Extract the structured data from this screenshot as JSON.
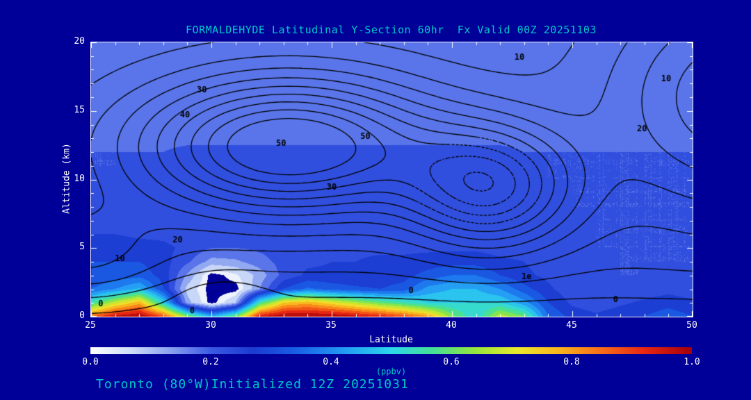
{
  "title": "FORMALDEHYDE Latitudinal Y-Section 60hr  Fx Valid 00Z 20251103",
  "footer": "Toronto (80°W)Initialized 12Z 20251031",
  "colors": {
    "background": "#000099",
    "heading_text": "#00C8C8",
    "axis_text": "#FFFFFF",
    "contour_line": "#000000",
    "plot_border": "#FFFFFF"
  },
  "axes": {
    "x": {
      "label": "Latitude",
      "min": 25,
      "max": 50,
      "major_ticks": [
        25,
        30,
        35,
        40,
        45,
        50
      ],
      "minor_step": 1
    },
    "y": {
      "label": "Altitude (km)",
      "min": 0,
      "max": 20,
      "major_ticks": [
        0,
        5,
        10,
        15,
        20
      ],
      "minor_step": 1
    }
  },
  "colorbar": {
    "label": "(ppbv)",
    "min": 0.0,
    "max": 1.0,
    "tick_labels": [
      "0.0",
      "0.2",
      "0.4",
      "0.6",
      "0.8",
      "1.0"
    ],
    "stops": [
      [
        0.0,
        255,
        255,
        255
      ],
      [
        0.07,
        205,
        220,
        248
      ],
      [
        0.14,
        130,
        155,
        240
      ],
      [
        0.2,
        60,
        90,
        228
      ],
      [
        0.27,
        28,
        60,
        210
      ],
      [
        0.34,
        25,
        95,
        230
      ],
      [
        0.42,
        35,
        155,
        245
      ],
      [
        0.5,
        45,
        215,
        235
      ],
      [
        0.57,
        70,
        225,
        150
      ],
      [
        0.64,
        150,
        230,
        60
      ],
      [
        0.71,
        235,
        235,
        45
      ],
      [
        0.78,
        250,
        180,
        30
      ],
      [
        0.85,
        248,
        110,
        25
      ],
      [
        0.92,
        235,
        40,
        20
      ],
      [
        1.0,
        165,
        0,
        10
      ]
    ]
  },
  "chart_data": {
    "type": "heatmap",
    "title": "FORMALDEHYDE Latitudinal Y-Section 60hr Fx Valid 00Z 20251103",
    "xlabel": "Latitude",
    "ylabel": "Altitude (km)",
    "unit": "ppbv",
    "xlim": [
      25,
      50
    ],
    "ylim": [
      0,
      20
    ],
    "lats": [
      25,
      26,
      27,
      28,
      29,
      30,
      31,
      32,
      33,
      34,
      35,
      36,
      37,
      38,
      39,
      40,
      41,
      42,
      43,
      44,
      45,
      46,
      47,
      48,
      49,
      50
    ],
    "alts": [
      0,
      1,
      2,
      3,
      4,
      5,
      6,
      7,
      8,
      9,
      10,
      11,
      12,
      13,
      14,
      15,
      16,
      17,
      18,
      19,
      20
    ],
    "fill_levels_step": 0.05,
    "mask_below": 0.02,
    "values_ppbv": [
      [
        0.85,
        0.97,
        1.0,
        0.88,
        0.62,
        0.45,
        0.6,
        0.95,
        1.0,
        1.0,
        1.0,
        0.97,
        0.93,
        0.88,
        0.8,
        0.62,
        0.5,
        0.68,
        0.6,
        0.35,
        0.28,
        0.26,
        0.28,
        0.3,
        0.33,
        0.3
      ],
      [
        0.55,
        0.68,
        0.78,
        0.5,
        0.12,
        0.0,
        0.1,
        0.55,
        0.75,
        0.78,
        0.72,
        0.66,
        0.6,
        0.55,
        0.5,
        0.5,
        0.5,
        0.5,
        0.42,
        0.3,
        0.24,
        0.22,
        0.24,
        0.26,
        0.28,
        0.26
      ],
      [
        0.35,
        0.4,
        0.46,
        0.3,
        0.08,
        0.0,
        0.0,
        0.15,
        0.3,
        0.36,
        0.33,
        0.31,
        0.3,
        0.32,
        0.42,
        0.45,
        0.45,
        0.4,
        0.32,
        0.26,
        0.22,
        0.2,
        0.21,
        0.22,
        0.23,
        0.22
      ],
      [
        0.3,
        0.32,
        0.33,
        0.28,
        0.14,
        0.0,
        0.04,
        0.12,
        0.22,
        0.26,
        0.26,
        0.26,
        0.27,
        0.28,
        0.32,
        0.35,
        0.35,
        0.3,
        0.26,
        0.24,
        0.22,
        0.2,
        0.2,
        0.2,
        0.21,
        0.2
      ],
      [
        0.3,
        0.3,
        0.3,
        0.27,
        0.21,
        0.13,
        0.14,
        0.18,
        0.22,
        0.24,
        0.25,
        0.25,
        0.26,
        0.26,
        0.27,
        0.28,
        0.28,
        0.26,
        0.25,
        0.23,
        0.22,
        0.21,
        0.2,
        0.2,
        0.2,
        0.2
      ],
      [
        0.28,
        0.28,
        0.27,
        0.26,
        0.24,
        0.2,
        0.2,
        0.21,
        0.22,
        0.23,
        0.24,
        0.24,
        0.24,
        0.24,
        0.24,
        0.24,
        0.24,
        0.23,
        0.23,
        0.22,
        0.21,
        0.2,
        0.2,
        0.2,
        0.2,
        0.2
      ],
      [
        0.25,
        0.25,
        0.24,
        0.24,
        0.23,
        0.21,
        0.2,
        0.2,
        0.21,
        0.21,
        0.22,
        0.22,
        0.22,
        0.22,
        0.22,
        0.22,
        0.22,
        0.22,
        0.22,
        0.21,
        0.21,
        0.2,
        0.2,
        0.2,
        0.2,
        0.2
      ],
      [
        0.23,
        0.23,
        0.23,
        0.22,
        0.22,
        0.21,
        0.21,
        0.21,
        0.21,
        0.21,
        0.21,
        0.21,
        0.21,
        0.21,
        0.22,
        0.22,
        0.22,
        0.22,
        0.21,
        0.21,
        0.21,
        0.2,
        0.2,
        0.2,
        0.2,
        0.2
      ],
      [
        0.22,
        0.22,
        0.22,
        0.22,
        0.21,
        0.21,
        0.21,
        0.21,
        0.21,
        0.21,
        0.21,
        0.21,
        0.21,
        0.21,
        0.22,
        0.22,
        0.22,
        0.22,
        0.21,
        0.21,
        0.2,
        0.2,
        0.2,
        0.2,
        0.2,
        0.2
      ],
      [
        0.21,
        0.21,
        0.21,
        0.21,
        0.21,
        0.21,
        0.21,
        0.21,
        0.21,
        0.21,
        0.21,
        0.21,
        0.21,
        0.21,
        0.22,
        0.22,
        0.22,
        0.21,
        0.21,
        0.21,
        0.2,
        0.2,
        0.2,
        0.2,
        0.2,
        0.2
      ],
      [
        0.21,
        0.21,
        0.21,
        0.21,
        0.21,
        0.21,
        0.21,
        0.21,
        0.21,
        0.21,
        0.21,
        0.21,
        0.21,
        0.21,
        0.22,
        0.22,
        0.22,
        0.21,
        0.21,
        0.2,
        0.2,
        0.2,
        0.2,
        0.2,
        0.2,
        0.2
      ],
      [
        0.2,
        0.2,
        0.21,
        0.21,
        0.21,
        0.21,
        0.21,
        0.21,
        0.21,
        0.21,
        0.21,
        0.21,
        0.21,
        0.21,
        0.21,
        0.21,
        0.21,
        0.21,
        0.21,
        0.2,
        0.2,
        0.2,
        0.2,
        0.2,
        0.2,
        0.2
      ],
      [
        0.2,
        0.2,
        0.2,
        0.2,
        0.21,
        0.21,
        0.21,
        0.21,
        0.21,
        0.21,
        0.21,
        0.21,
        0.21,
        0.21,
        0.21,
        0.21,
        0.21,
        0.21,
        0.2,
        0.2,
        0.2,
        0.2,
        0.2,
        0.2,
        0.2,
        0.2
      ],
      [
        0.19,
        0.19,
        0.19,
        0.19,
        0.19,
        0.19,
        0.19,
        0.19,
        0.19,
        0.19,
        0.19,
        0.19,
        0.19,
        0.19,
        0.19,
        0.19,
        0.19,
        0.19,
        0.19,
        0.19,
        0.19,
        0.18,
        0.18,
        0.18,
        0.18,
        0.18
      ],
      [
        0.18,
        0.18,
        0.18,
        0.18,
        0.18,
        0.18,
        0.18,
        0.18,
        0.18,
        0.18,
        0.18,
        0.18,
        0.18,
        0.18,
        0.18,
        0.18,
        0.18,
        0.18,
        0.18,
        0.18,
        0.18,
        0.18,
        0.18,
        0.18,
        0.18,
        0.18
      ],
      [
        0.18,
        0.18,
        0.18,
        0.18,
        0.18,
        0.18,
        0.18,
        0.18,
        0.18,
        0.18,
        0.18,
        0.18,
        0.18,
        0.18,
        0.18,
        0.18,
        0.18,
        0.18,
        0.18,
        0.18,
        0.18,
        0.18,
        0.18,
        0.18,
        0.18,
        0.18
      ],
      [
        0.18,
        0.18,
        0.18,
        0.18,
        0.18,
        0.18,
        0.18,
        0.18,
        0.18,
        0.18,
        0.18,
        0.18,
        0.18,
        0.18,
        0.18,
        0.18,
        0.18,
        0.18,
        0.18,
        0.18,
        0.18,
        0.18,
        0.18,
        0.18,
        0.18,
        0.18
      ],
      [
        0.17,
        0.17,
        0.17,
        0.17,
        0.17,
        0.17,
        0.17,
        0.17,
        0.17,
        0.17,
        0.17,
        0.17,
        0.17,
        0.17,
        0.17,
        0.17,
        0.17,
        0.17,
        0.17,
        0.17,
        0.17,
        0.17,
        0.17,
        0.17,
        0.17,
        0.17
      ],
      [
        0.17,
        0.17,
        0.17,
        0.17,
        0.17,
        0.17,
        0.17,
        0.17,
        0.17,
        0.17,
        0.17,
        0.17,
        0.17,
        0.17,
        0.17,
        0.17,
        0.17,
        0.17,
        0.17,
        0.17,
        0.17,
        0.17,
        0.17,
        0.17,
        0.17,
        0.17
      ],
      [
        0.17,
        0.17,
        0.17,
        0.17,
        0.17,
        0.17,
        0.17,
        0.17,
        0.17,
        0.17,
        0.17,
        0.17,
        0.17,
        0.17,
        0.17,
        0.17,
        0.17,
        0.17,
        0.17,
        0.17,
        0.17,
        0.17,
        0.17,
        0.17,
        0.17,
        0.17
      ],
      [
        0.17,
        0.17,
        0.17,
        0.17,
        0.17,
        0.17,
        0.17,
        0.17,
        0.17,
        0.17,
        0.17,
        0.17,
        0.17,
        0.17,
        0.17,
        0.17,
        0.17,
        0.17,
        0.17,
        0.17,
        0.17,
        0.17,
        0.17,
        0.17,
        0.17,
        0.17
      ]
    ],
    "contours": {
      "levels": [
        0,
        5,
        10,
        15,
        20,
        25,
        30,
        35,
        40,
        45,
        50
      ],
      "labels": [
        {
          "lat": 29.6,
          "alt": 16.5,
          "text": "30"
        },
        {
          "lat": 28.9,
          "alt": 14.7,
          "text": "40"
        },
        {
          "lat": 36.4,
          "alt": 13.1,
          "text": "50"
        },
        {
          "lat": 32.9,
          "alt": 12.6,
          "text": "50"
        },
        {
          "lat": 35.0,
          "alt": 9.4,
          "text": "30"
        },
        {
          "lat": 28.6,
          "alt": 5.6,
          "text": "20"
        },
        {
          "lat": 26.2,
          "alt": 4.2,
          "text": "10"
        },
        {
          "lat": 42.8,
          "alt": 18.9,
          "text": "10"
        },
        {
          "lat": 48.9,
          "alt": 17.3,
          "text": "10"
        },
        {
          "lat": 47.9,
          "alt": 13.7,
          "text": "20"
        },
        {
          "lat": 38.3,
          "alt": 1.9,
          "text": "0"
        },
        {
          "lat": 25.4,
          "alt": 0.9,
          "text": "0"
        },
        {
          "lat": 29.2,
          "alt": 0.4,
          "text": "0"
        },
        {
          "lat": 43.1,
          "alt": 2.9,
          "text": "1e"
        },
        {
          "lat": 46.8,
          "alt": 1.2,
          "text": "0"
        }
      ],
      "field_model": {
        "gaussians": [
          [
            52,
            33.2,
            6.2,
            12.4,
            5.0
          ],
          [
            38,
            41.6,
            3.4,
            9.4,
            4.4
          ],
          [
            24,
            52.0,
            5.5,
            16.0,
            8.0
          ],
          [
            12,
            24.5,
            3.5,
            4.5,
            3.5
          ],
          [
            -8,
            30.5,
            1.6,
            1.2,
            1.4
          ]
        ],
        "base": {
          "amp": 6,
          "alt0": 1.6,
          "scale": 2.8
        },
        "dashed_region": {
          "lat": 41.6,
          "alt": 9.4,
          "rx": 3.2,
          "ry": 3.8,
          "min_level": 35
        }
      }
    }
  }
}
